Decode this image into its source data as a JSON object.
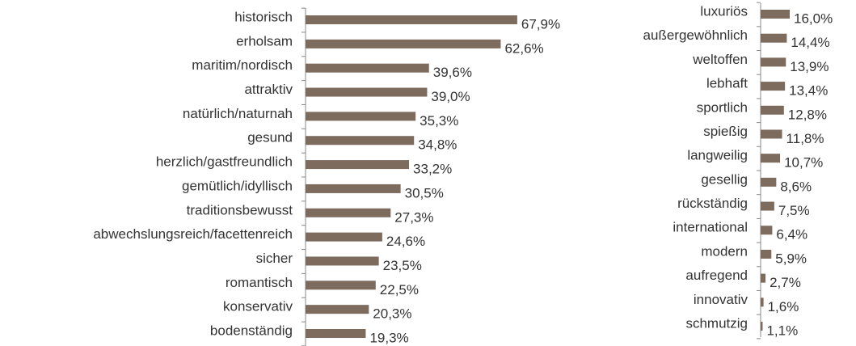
{
  "chart_data": [
    {
      "type": "barh",
      "color": "#7d6b5e",
      "xlim": [
        0,
        70
      ],
      "categories": [
        "historisch",
        "erholsam",
        "maritim/nordisch",
        "attraktiv",
        "natürlich/naturnah",
        "gesund",
        "herzlich/gastfreundlich",
        "gemütlich/idyllisch",
        "traditionsbewusst",
        "abwechslungsreich/facettenreich",
        "sicher",
        "romantisch",
        "konservativ",
        "bodenständig"
      ],
      "values": [
        67.9,
        62.6,
        39.6,
        39.0,
        35.3,
        34.8,
        33.2,
        30.5,
        27.3,
        24.6,
        23.5,
        22.5,
        20.3,
        19.3
      ],
      "value_labels": [
        "67,9%",
        "62,6%",
        "39,6%",
        "39,0%",
        "35,3%",
        "34,8%",
        "33,2%",
        "30,5%",
        "27,3%",
        "24,6%",
        "23,5%",
        "22,5%",
        "20,3%",
        "19,3%"
      ]
    },
    {
      "type": "barh",
      "color": "#7d6b5e",
      "xlim": [
        0,
        20
      ],
      "categories": [
        "luxuriös",
        "außergewöhnlich",
        "weltoffen",
        "lebhaft",
        "sportlich",
        "spießig",
        "langweilig",
        "gesellig",
        "rückständig",
        "international",
        "modern",
        "aufregend",
        "innovativ",
        "schmutzig"
      ],
      "values": [
        16.0,
        14.4,
        13.9,
        13.4,
        12.8,
        11.8,
        10.7,
        8.6,
        7.5,
        6.4,
        5.9,
        2.7,
        1.6,
        1.1
      ],
      "value_labels": [
        "16,0%",
        "14,4%",
        "13,9%",
        "13,4%",
        "12,8%",
        "11,8%",
        "10,7%",
        "8,6%",
        "7,5%",
        "6,4%",
        "5,9%",
        "2,7%",
        "1,6%",
        "1,1%"
      ]
    }
  ]
}
